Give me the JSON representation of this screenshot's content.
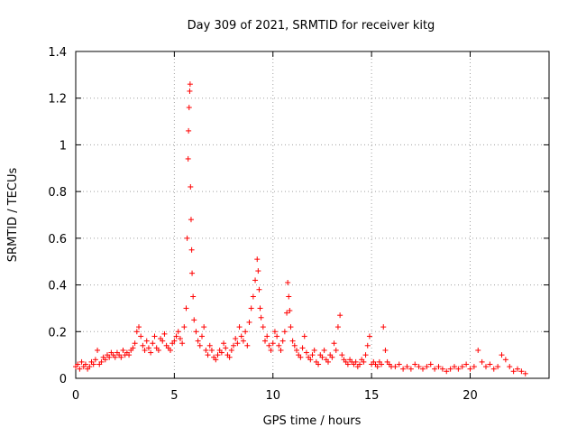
{
  "chart_data": {
    "type": "scatter",
    "title": "Day 309 of 2021, SRMTID for receiver kitg",
    "xlabel": "GPS time / hours",
    "ylabel": "SRMTID / TECUs",
    "xlim": [
      0,
      24
    ],
    "ylim": [
      0,
      1.4
    ],
    "x_ticks": [
      0,
      5,
      10,
      15,
      20
    ],
    "x_tick_labels": [
      "0",
      "5",
      "10",
      "15",
      "20"
    ],
    "y_ticks": [
      0,
      0.2,
      0.4,
      0.6,
      0.8,
      1.0,
      1.2,
      1.4
    ],
    "y_tick_labels": [
      "0",
      "0.2",
      "0.4",
      "0.6",
      "0.8",
      "1",
      "1.2",
      "1.4"
    ],
    "grid": true,
    "marker": "plus",
    "color": "#ff0000",
    "series": [
      {
        "name": "SRMTID",
        "x": [
          0.0,
          0.1,
          0.2,
          0.3,
          0.4,
          0.5,
          0.6,
          0.7,
          0.8,
          0.9,
          1.0,
          1.1,
          1.2,
          1.3,
          1.4,
          1.5,
          1.6,
          1.7,
          1.8,
          1.9,
          2.0,
          2.1,
          2.2,
          2.3,
          2.4,
          2.5,
          2.6,
          2.7,
          2.8,
          2.9,
          3.0,
          3.1,
          3.2,
          3.3,
          3.4,
          3.5,
          3.6,
          3.7,
          3.8,
          3.9,
          4.0,
          4.1,
          4.2,
          4.3,
          4.4,
          4.5,
          4.6,
          4.7,
          4.8,
          4.9,
          5.0,
          5.1,
          5.2,
          5.3,
          5.4,
          5.5,
          5.6,
          5.65,
          5.7,
          5.72,
          5.75,
          5.78,
          5.8,
          5.82,
          5.85,
          5.88,
          5.9,
          5.95,
          6.0,
          6.1,
          6.2,
          6.3,
          6.4,
          6.5,
          6.6,
          6.7,
          6.8,
          6.9,
          7.0,
          7.1,
          7.2,
          7.3,
          7.4,
          7.5,
          7.6,
          7.7,
          7.8,
          7.9,
          8.0,
          8.1,
          8.2,
          8.3,
          8.4,
          8.5,
          8.6,
          8.7,
          8.8,
          8.9,
          9.0,
          9.1,
          9.2,
          9.25,
          9.3,
          9.35,
          9.4,
          9.5,
          9.6,
          9.7,
          9.8,
          9.9,
          10.0,
          10.1,
          10.2,
          10.3,
          10.4,
          10.5,
          10.6,
          10.7,
          10.75,
          10.8,
          10.85,
          10.9,
          11.0,
          11.1,
          11.2,
          11.3,
          11.4,
          11.5,
          11.6,
          11.7,
          11.8,
          11.9,
          12.0,
          12.1,
          12.2,
          12.3,
          12.4,
          12.5,
          12.6,
          12.7,
          12.8,
          12.9,
          13.0,
          13.1,
          13.2,
          13.3,
          13.4,
          13.5,
          13.6,
          13.7,
          13.8,
          13.9,
          14.0,
          14.1,
          14.2,
          14.3,
          14.4,
          14.5,
          14.6,
          14.7,
          14.8,
          14.9,
          15.0,
          15.1,
          15.2,
          15.3,
          15.4,
          15.5,
          15.6,
          15.7,
          15.8,
          15.9,
          16.0,
          16.2,
          16.4,
          16.6,
          16.8,
          17.0,
          17.2,
          17.4,
          17.6,
          17.8,
          18.0,
          18.2,
          18.4,
          18.6,
          18.8,
          19.0,
          19.2,
          19.4,
          19.6,
          19.8,
          20.0,
          20.2,
          20.4,
          20.6,
          20.8,
          21.0,
          21.2,
          21.4,
          21.6,
          21.8,
          22.0,
          22.2,
          22.4,
          22.6,
          22.8
        ],
        "y": [
          0.05,
          0.06,
          0.04,
          0.07,
          0.05,
          0.06,
          0.04,
          0.05,
          0.07,
          0.06,
          0.08,
          0.12,
          0.06,
          0.07,
          0.09,
          0.08,
          0.1,
          0.09,
          0.11,
          0.1,
          0.09,
          0.11,
          0.1,
          0.09,
          0.12,
          0.1,
          0.11,
          0.1,
          0.12,
          0.13,
          0.15,
          0.2,
          0.22,
          0.18,
          0.14,
          0.12,
          0.16,
          0.13,
          0.11,
          0.15,
          0.18,
          0.13,
          0.12,
          0.17,
          0.16,
          0.19,
          0.14,
          0.13,
          0.12,
          0.15,
          0.16,
          0.18,
          0.2,
          0.17,
          0.15,
          0.22,
          0.3,
          0.6,
          0.94,
          1.06,
          1.16,
          1.23,
          1.26,
          0.82,
          0.68,
          0.55,
          0.45,
          0.35,
          0.25,
          0.2,
          0.16,
          0.14,
          0.18,
          0.22,
          0.12,
          0.1,
          0.14,
          0.12,
          0.09,
          0.08,
          0.1,
          0.12,
          0.11,
          0.15,
          0.13,
          0.1,
          0.09,
          0.12,
          0.14,
          0.17,
          0.15,
          0.22,
          0.18,
          0.16,
          0.2,
          0.14,
          0.24,
          0.3,
          0.35,
          0.42,
          0.51,
          0.46,
          0.38,
          0.3,
          0.26,
          0.22,
          0.16,
          0.18,
          0.14,
          0.12,
          0.15,
          0.2,
          0.18,
          0.14,
          0.12,
          0.16,
          0.2,
          0.28,
          0.41,
          0.35,
          0.29,
          0.22,
          0.16,
          0.14,
          0.12,
          0.1,
          0.09,
          0.13,
          0.18,
          0.11,
          0.09,
          0.08,
          0.1,
          0.12,
          0.07,
          0.06,
          0.1,
          0.09,
          0.12,
          0.08,
          0.07,
          0.1,
          0.09,
          0.15,
          0.12,
          0.22,
          0.27,
          0.1,
          0.08,
          0.07,
          0.06,
          0.08,
          0.07,
          0.06,
          0.07,
          0.05,
          0.06,
          0.08,
          0.07,
          0.1,
          0.14,
          0.18,
          0.06,
          0.07,
          0.06,
          0.05,
          0.07,
          0.06,
          0.22,
          0.12,
          0.07,
          0.06,
          0.05,
          0.05,
          0.06,
          0.04,
          0.05,
          0.04,
          0.06,
          0.05,
          0.04,
          0.05,
          0.06,
          0.04,
          0.05,
          0.04,
          0.03,
          0.04,
          0.05,
          0.04,
          0.05,
          0.06,
          0.04,
          0.05,
          0.12,
          0.07,
          0.05,
          0.06,
          0.04,
          0.05,
          0.1,
          0.08,
          0.05,
          0.03,
          0.04,
          0.03,
          0.02
        ]
      }
    ]
  }
}
